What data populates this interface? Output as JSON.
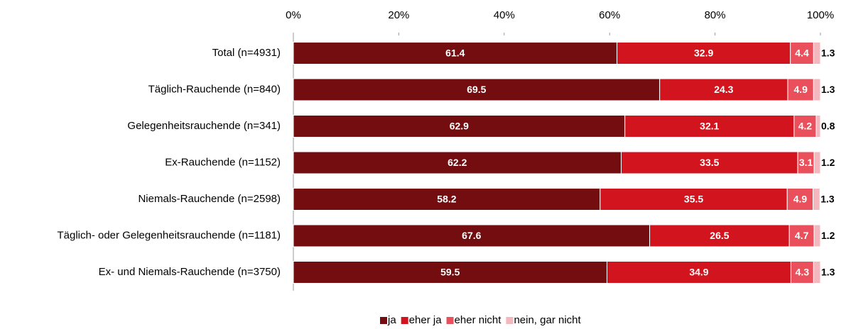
{
  "chart_data": {
    "type": "stacked-bar-horizontal",
    "categories": [
      "Total (n=4931)",
      "Täglich-Rauchende (n=840)",
      "Gelegenheitsrauchende (n=341)",
      "Ex-Rauchende (n=1152)",
      "Niemals-Rauchende (n=2598)",
      "Täglich- oder Gelegenheitsrauchende (n=1181)",
      "Ex- und Niemals-Rauchende (n=3750)"
    ],
    "series": [
      {
        "name": "ja",
        "color": "#730d10",
        "values": [
          61.4,
          69.5,
          62.9,
          62.2,
          58.2,
          67.6,
          59.5
        ]
      },
      {
        "name": "eher ja",
        "color": "#d2141e",
        "values": [
          32.9,
          24.3,
          32.1,
          33.5,
          35.5,
          26.5,
          34.9
        ]
      },
      {
        "name": "eher nicht",
        "color": "#e9505b",
        "values": [
          4.4,
          4.9,
          4.2,
          3.1,
          4.9,
          4.7,
          4.3
        ]
      },
      {
        "name": "nein, gar nicht",
        "color": "#f5b7be",
        "values": [
          1.3,
          1.3,
          0.8,
          1.2,
          1.3,
          1.2,
          1.3
        ]
      }
    ],
    "xlim": [
      0,
      100
    ],
    "xticks": [
      {
        "value": 0,
        "label": "0%"
      },
      {
        "value": 20,
        "label": "20%"
      },
      {
        "value": 40,
        "label": "40%"
      },
      {
        "value": 60,
        "label": "60%"
      },
      {
        "value": 80,
        "label": "80%"
      },
      {
        "value": 100,
        "label": "100%"
      }
    ],
    "legend": "bottom"
  }
}
